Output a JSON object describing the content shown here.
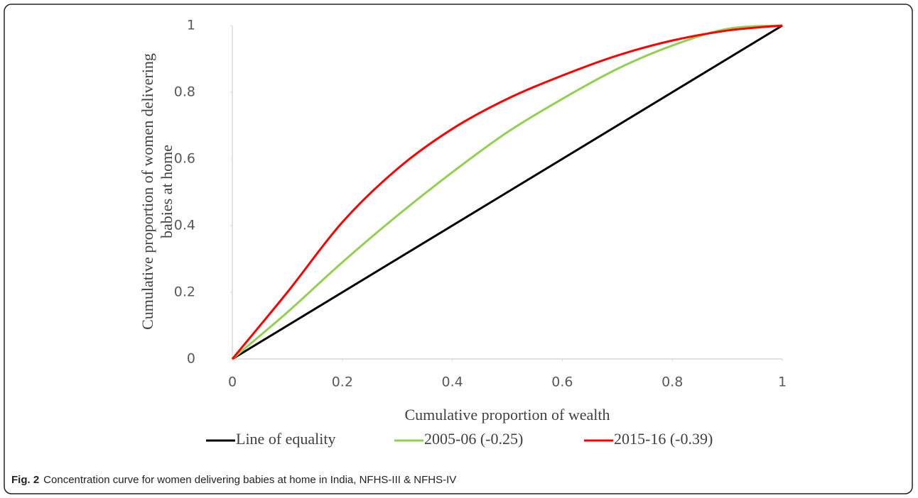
{
  "chart_data": {
    "type": "line",
    "xlabel": "Cumulative proportion of wealth",
    "ylabel": [
      "Cumulative proportion of women delivering",
      "babies at home"
    ],
    "xlim": [
      0,
      1
    ],
    "ylim": [
      0,
      1
    ],
    "xticks": [
      0,
      0.2,
      0.4,
      0.6,
      0.8,
      1
    ],
    "yticks": [
      0,
      0.2,
      0.4,
      0.6,
      0.8,
      1
    ],
    "legend": "bottom",
    "series": [
      {
        "name": "Line of equality",
        "color": "#000000",
        "x": [
          0,
          1
        ],
        "values": [
          0,
          1
        ]
      },
      {
        "name": "2005-06 (-0.25)",
        "color": "#92d050",
        "x": [
          0,
          0.1,
          0.2,
          0.3,
          0.4,
          0.5,
          0.6,
          0.7,
          0.8,
          0.9,
          1
        ],
        "values": [
          0,
          0.14,
          0.29,
          0.43,
          0.56,
          0.68,
          0.78,
          0.87,
          0.94,
          0.99,
          1
        ]
      },
      {
        "name": "2015-16 (-0.39)",
        "color": "#ff0000",
        "x": [
          0,
          0.1,
          0.2,
          0.3,
          0.4,
          0.5,
          0.6,
          0.7,
          0.8,
          0.9,
          1
        ],
        "values": [
          0,
          0.2,
          0.41,
          0.57,
          0.69,
          0.78,
          0.85,
          0.91,
          0.955,
          0.985,
          1
        ]
      }
    ],
    "caption_label": "Fig. 2",
    "caption": "Concentration curve for women delivering babies at home in India, NFHS-III & NFHS-IV"
  }
}
